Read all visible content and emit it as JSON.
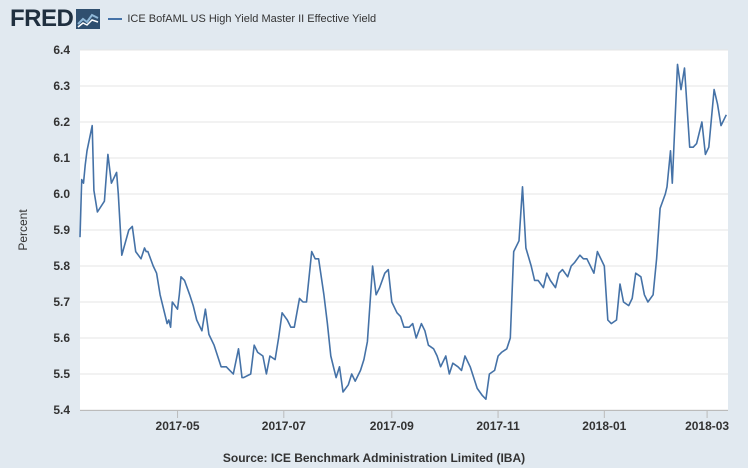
{
  "header": {
    "logo_text": "FRED",
    "legend_label": "ICE BofAML US High Yield Master II Effective Yield"
  },
  "source_text": "Source: ICE Benchmark Administration Limited (IBA)",
  "colors": {
    "background": "#e1e9f0",
    "plot_background": "#ffffff",
    "series_line": "#4572a7",
    "grid": "#e5e5e5"
  },
  "icons": {
    "logo": "fred-chart-icon"
  },
  "chart_data": {
    "type": "line",
    "title": "",
    "xlabel": "",
    "ylabel": "Percent",
    "ylim": [
      5.4,
      6.4
    ],
    "yticks": [
      5.4,
      5.5,
      5.6,
      5.7,
      5.8,
      5.9,
      6.0,
      6.1,
      6.2,
      6.3,
      6.4
    ],
    "ytick_labels": [
      "5.4",
      "5.5",
      "5.6",
      "5.7",
      "5.8",
      "5.9",
      "6.0",
      "6.1",
      "6.2",
      "6.3",
      "6.4"
    ],
    "xlim": [
      "2017-03-06",
      "2018-03-13"
    ],
    "xticks": [
      "2017-05-01",
      "2017-07-01",
      "2017-09-01",
      "2017-11-01",
      "2018-01-01",
      "2018-03-01"
    ],
    "xtick_labels": [
      "2017-05",
      "2017-07",
      "2017-09",
      "2017-11",
      "2018-01",
      "2018-03"
    ],
    "grid": "horizontal",
    "legend": "top-left",
    "series": [
      {
        "name": "ICE BofAML US High Yield Master II Effective Yield",
        "x": [
          "2017-03-06",
          "2017-03-07",
          "2017-03-08",
          "2017-03-09",
          "2017-03-10",
          "2017-03-13",
          "2017-03-14",
          "2017-03-16",
          "2017-03-20",
          "2017-03-22",
          "2017-03-24",
          "2017-03-27",
          "2017-03-28",
          "2017-03-30",
          "2017-04-03",
          "2017-04-05",
          "2017-04-07",
          "2017-04-10",
          "2017-04-12",
          "2017-04-13",
          "2017-04-14",
          "2017-04-17",
          "2017-04-19",
          "2017-04-21",
          "2017-04-24",
          "2017-04-25",
          "2017-04-26",
          "2017-04-27",
          "2017-04-28",
          "2017-05-01",
          "2017-05-02",
          "2017-05-03",
          "2017-05-05",
          "2017-05-08",
          "2017-05-10",
          "2017-05-12",
          "2017-05-15",
          "2017-05-17",
          "2017-05-19",
          "2017-05-22",
          "2017-05-24",
          "2017-05-26",
          "2017-05-29",
          "2017-05-31",
          "2017-06-02",
          "2017-06-05",
          "2017-06-06",
          "2017-06-07",
          "2017-06-08",
          "2017-06-12",
          "2017-06-14",
          "2017-06-16",
          "2017-06-19",
          "2017-06-21",
          "2017-06-23",
          "2017-06-26",
          "2017-06-28",
          "2017-06-30",
          "2017-07-03",
          "2017-07-05",
          "2017-07-07",
          "2017-07-10",
          "2017-07-12",
          "2017-07-14",
          "2017-07-17",
          "2017-07-19",
          "2017-07-21",
          "2017-07-24",
          "2017-07-26",
          "2017-07-28",
          "2017-07-31",
          "2017-08-02",
          "2017-08-04",
          "2017-08-07",
          "2017-08-09",
          "2017-08-11",
          "2017-08-14",
          "2017-08-16",
          "2017-08-18",
          "2017-08-21",
          "2017-08-23",
          "2017-08-25",
          "2017-08-28",
          "2017-08-30",
          "2017-09-01",
          "2017-09-04",
          "2017-09-06",
          "2017-09-08",
          "2017-09-11",
          "2017-09-13",
          "2017-09-15",
          "2017-09-18",
          "2017-09-20",
          "2017-09-22",
          "2017-09-25",
          "2017-09-27",
          "2017-09-29",
          "2017-10-02",
          "2017-10-04",
          "2017-10-06",
          "2017-10-09",
          "2017-10-11",
          "2017-10-13",
          "2017-10-16",
          "2017-10-18",
          "2017-10-20",
          "2017-10-23",
          "2017-10-25",
          "2017-10-27",
          "2017-10-30",
          "2017-11-01",
          "2017-11-03",
          "2017-11-06",
          "2017-11-08",
          "2017-11-10",
          "2017-11-13",
          "2017-11-15",
          "2017-11-17",
          "2017-11-20",
          "2017-11-22",
          "2017-11-24",
          "2017-11-27",
          "2017-11-29",
          "2017-12-01",
          "2017-12-04",
          "2017-12-06",
          "2017-12-08",
          "2017-12-11",
          "2017-12-13",
          "2017-12-15",
          "2017-12-18",
          "2017-12-20",
          "2017-12-22",
          "2017-12-26",
          "2017-12-28",
          "2018-01-01",
          "2018-01-03",
          "2018-01-05",
          "2018-01-08",
          "2018-01-10",
          "2018-01-12",
          "2018-01-15",
          "2018-01-17",
          "2018-01-19",
          "2018-01-22",
          "2018-01-24",
          "2018-01-26",
          "2018-01-29",
          "2018-01-31",
          "2018-02-02",
          "2018-02-05",
          "2018-02-06",
          "2018-02-08",
          "2018-02-09",
          "2018-02-12",
          "2018-02-14",
          "2018-02-16",
          "2018-02-19",
          "2018-02-21",
          "2018-02-23",
          "2018-02-26",
          "2018-02-28",
          "2018-03-02",
          "2018-03-05",
          "2018-03-07",
          "2018-03-09",
          "2018-03-12"
        ],
        "values": [
          5.88,
          6.04,
          6.03,
          6.08,
          6.12,
          6.19,
          6.01,
          5.95,
          5.98,
          6.11,
          6.03,
          6.06,
          6.0,
          5.83,
          5.9,
          5.91,
          5.84,
          5.82,
          5.85,
          5.84,
          5.84,
          5.8,
          5.78,
          5.72,
          5.66,
          5.64,
          5.65,
          5.63,
          5.7,
          5.68,
          5.72,
          5.77,
          5.76,
          5.72,
          5.69,
          5.65,
          5.62,
          5.68,
          5.61,
          5.58,
          5.55,
          5.52,
          5.52,
          5.51,
          5.5,
          5.57,
          5.53,
          5.49,
          5.49,
          5.5,
          5.58,
          5.56,
          5.55,
          5.5,
          5.55,
          5.54,
          5.6,
          5.67,
          5.65,
          5.63,
          5.63,
          5.71,
          5.7,
          5.7,
          5.84,
          5.82,
          5.82,
          5.72,
          5.64,
          5.55,
          5.49,
          5.52,
          5.45,
          5.47,
          5.5,
          5.48,
          5.51,
          5.54,
          5.59,
          5.8,
          5.72,
          5.74,
          5.78,
          5.79,
          5.7,
          5.67,
          5.66,
          5.63,
          5.63,
          5.64,
          5.6,
          5.64,
          5.62,
          5.58,
          5.57,
          5.55,
          5.52,
          5.55,
          5.5,
          5.53,
          5.52,
          5.51,
          5.55,
          5.52,
          5.49,
          5.46,
          5.44,
          5.43,
          5.5,
          5.51,
          5.55,
          5.56,
          5.57,
          5.6,
          5.84,
          5.87,
          6.02,
          5.85,
          5.8,
          5.76,
          5.76,
          5.74,
          5.78,
          5.76,
          5.74,
          5.78,
          5.79,
          5.77,
          5.8,
          5.81,
          5.83,
          5.82,
          5.82,
          5.78,
          5.84,
          5.8,
          5.65,
          5.64,
          5.65,
          5.75,
          5.7,
          5.69,
          5.71,
          5.78,
          5.77,
          5.72,
          5.7,
          5.72,
          5.82,
          5.96,
          6.0,
          6.02,
          6.12,
          6.03,
          6.36,
          6.29,
          6.35,
          6.13,
          6.13,
          6.14,
          6.2,
          6.11,
          6.13,
          6.29,
          6.25,
          6.19,
          6.22
        ]
      }
    ]
  }
}
